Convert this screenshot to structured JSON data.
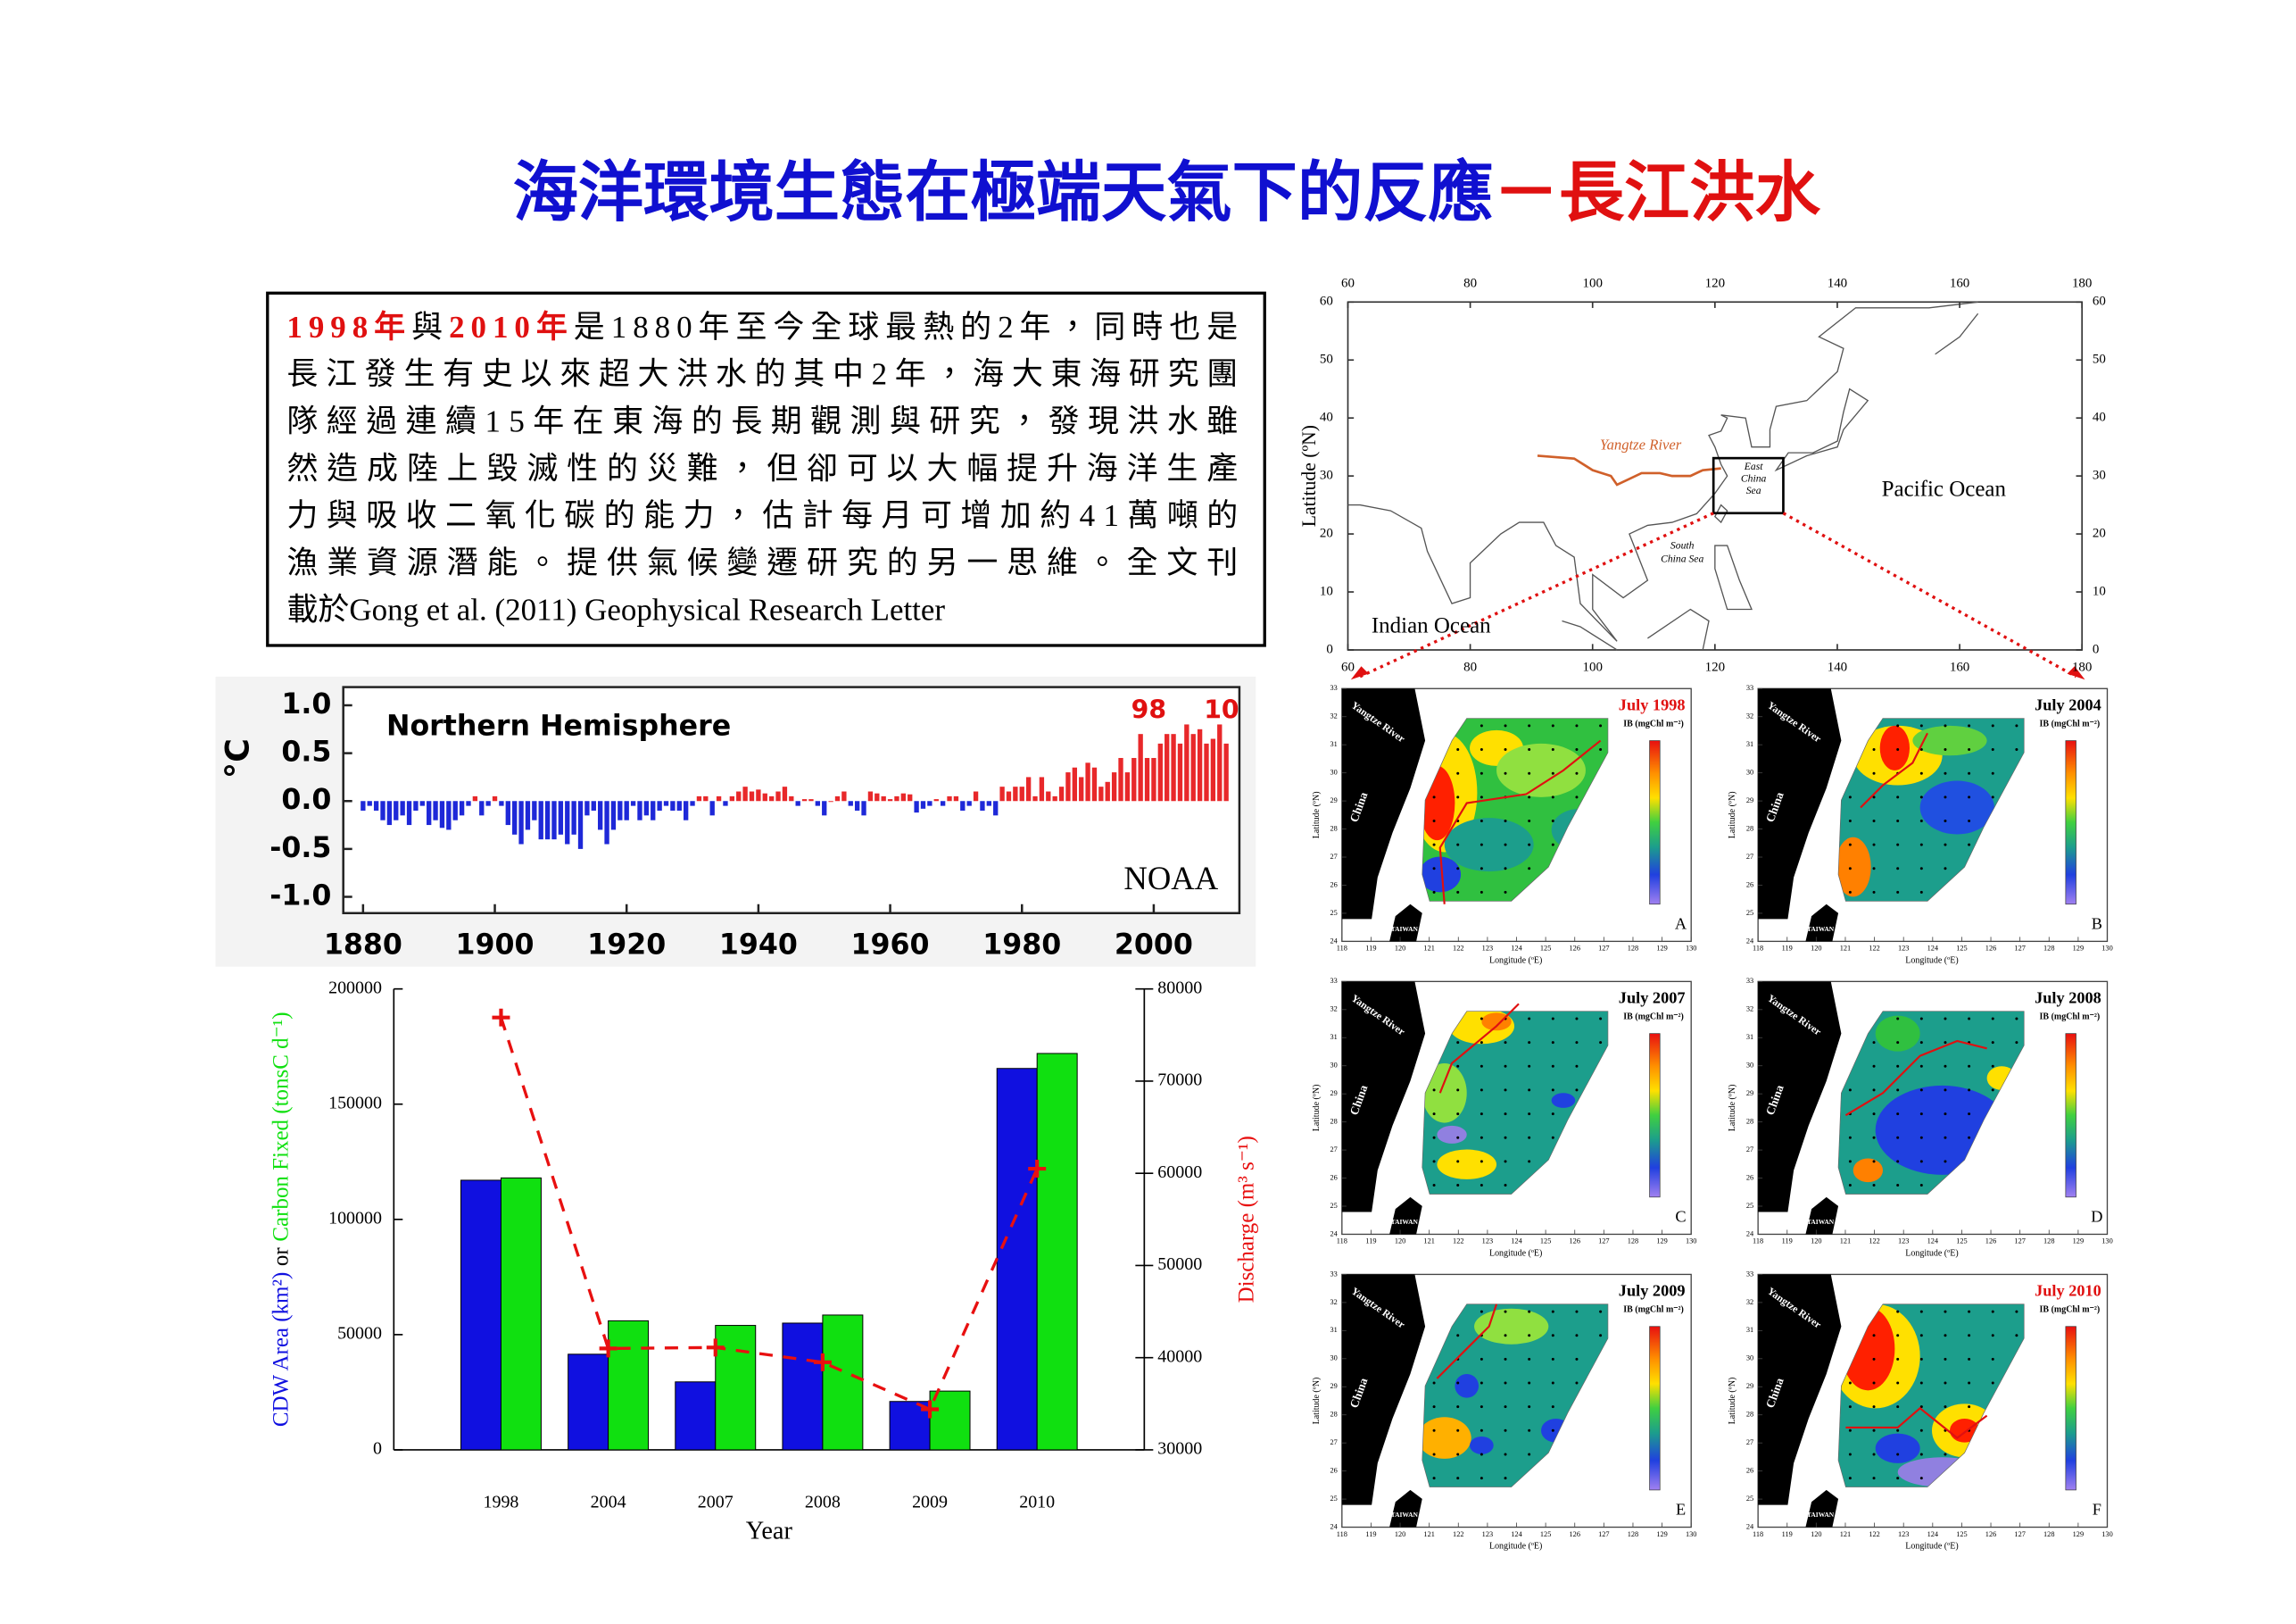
{
  "header": {
    "title": [
      "海洋環境生態在極端天氣下的反應",
      "－長江洪水"
    ]
  },
  "text": {
    "lines": [
      [
        "1998年",
        "與",
        "2010年",
        "是1880年至今全球最熱的2年，同時也是"
      ],
      [
        "長江發生有史以來超大洪水的其中2年，海大東海研究團"
      ],
      [
        "隊經過連續15年在東海的長期觀測與研究，發現洪水雖"
      ],
      [
        "然造成陸上毀滅性的災難，但卻可以大幅提升海洋生產"
      ],
      [
        "力與吸收二氧化碳的能力，估計每月可增加約41萬噸的"
      ],
      [
        "漁業資源潛能。提供氣候變遷研究的另一思維。全文刊"
      ],
      [
        "載於Gong et al. (2011) Geophysical Research Letter"
      ]
    ]
  },
  "chart_data": [
    {
      "type": "bar",
      "title": "Northern Hemisphere",
      "y_label": "°C",
      "annotations": [
        "98",
        "10",
        "NOAA"
      ],
      "x": [
        1880,
        1881,
        1882,
        1883,
        1884,
        1885,
        1886,
        1887,
        1888,
        1889,
        1890,
        1891,
        1892,
        1893,
        1894,
        1895,
        1896,
        1897,
        1898,
        1899,
        1900,
        1901,
        1902,
        1903,
        1904,
        1905,
        1906,
        1907,
        1908,
        1909,
        1910,
        1911,
        1912,
        1913,
        1914,
        1915,
        1916,
        1917,
        1918,
        1919,
        1920,
        1921,
        1922,
        1923,
        1924,
        1925,
        1926,
        1927,
        1928,
        1929,
        1930,
        1931,
        1932,
        1933,
        1934,
        1935,
        1936,
        1937,
        1938,
        1939,
        1940,
        1941,
        1942,
        1943,
        1944,
        1945,
        1946,
        1947,
        1948,
        1949,
        1950,
        1951,
        1952,
        1953,
        1954,
        1955,
        1956,
        1957,
        1958,
        1959,
        1960,
        1961,
        1962,
        1963,
        1964,
        1965,
        1966,
        1967,
        1968,
        1969,
        1970,
        1971,
        1972,
        1973,
        1974,
        1975,
        1976,
        1977,
        1978,
        1979,
        1980,
        1981,
        1982,
        1983,
        1984,
        1985,
        1986,
        1987,
        1988,
        1989,
        1990,
        1991,
        1992,
        1993,
        1994,
        1995,
        1996,
        1997,
        1998,
        1999,
        2000,
        2001,
        2002,
        2003,
        2004,
        2005,
        2006,
        2007,
        2008,
        2009,
        2010,
        2011
      ],
      "values": [
        -0.1,
        -0.05,
        -0.1,
        -0.2,
        -0.25,
        -0.2,
        -0.15,
        -0.25,
        -0.1,
        -0.05,
        -0.25,
        -0.2,
        -0.28,
        -0.3,
        -0.2,
        -0.15,
        -0.05,
        0.05,
        -0.15,
        -0.05,
        0.05,
        -0.05,
        -0.25,
        -0.35,
        -0.45,
        -0.3,
        -0.2,
        -0.4,
        -0.4,
        -0.4,
        -0.35,
        -0.45,
        -0.35,
        -0.5,
        -0.15,
        -0.1,
        -0.3,
        -0.45,
        -0.3,
        -0.2,
        -0.2,
        -0.05,
        -0.2,
        -0.15,
        -0.2,
        -0.1,
        -0.05,
        -0.1,
        -0.1,
        -0.2,
        -0.05,
        0.05,
        0.05,
        -0.15,
        0.05,
        -0.05,
        0.05,
        0.1,
        0.15,
        0.1,
        0.12,
        0.08,
        0.05,
        0.1,
        0.15,
        0.05,
        -0.05,
        0.02,
        0.02,
        -0.05,
        -0.15,
        0,
        0.05,
        0.1,
        -0.05,
        -0.1,
        -0.15,
        0.1,
        0.08,
        0.05,
        0.02,
        0.05,
        0.08,
        0.07,
        -0.12,
        -0.08,
        -0.05,
        0.02,
        -0.05,
        0.05,
        0.05,
        -0.1,
        -0.05,
        0.1,
        -0.1,
        -0.05,
        -0.15,
        0.15,
        0.1,
        0.15,
        0.15,
        0.25,
        0.05,
        0.25,
        0.1,
        0.05,
        0.15,
        0.3,
        0.35,
        0.25,
        0.4,
        0.35,
        0.15,
        0.2,
        0.3,
        0.45,
        0.3,
        0.45,
        0.7,
        0.45,
        0.45,
        0.6,
        0.7,
        0.7,
        0.6,
        0.8,
        0.7,
        0.75,
        0.6,
        0.65,
        0.8,
        0.6
      ],
      "colors": {
        "positive": "#e8282a",
        "negative": "#1e28d8"
      },
      "xlim": [
        1877,
        2013
      ],
      "xticks": [
        1880,
        1900,
        1920,
        1940,
        1960,
        1980,
        2000
      ],
      "ylim": [
        -1.17,
        1.19
      ],
      "yticks": [
        {
          "value": 1,
          "label": "1.0"
        },
        0.5,
        {
          "value": 0,
          "label": "0.0"
        },
        -0.5,
        {
          "value": -1,
          "label": "-1.0"
        }
      ]
    },
    {
      "type": "bar",
      "x_label": "Year",
      "y_label_joiner": "or",
      "categories": [
        "1998",
        "2004",
        "2007",
        "2008",
        "2009",
        "2010"
      ],
      "series": [
        {
          "name": "CDW Area (km²)",
          "color": "#1010e0",
          "values": [
            117000,
            41500,
            29500,
            55000,
            21000,
            165500
          ]
        },
        {
          "name": "Carbon Fixed (tonsC d⁻¹)",
          "color": "#10e010",
          "values": [
            118000,
            56000,
            54000,
            58500,
            25500,
            172000
          ]
        },
        {
          "name": "Discharge (m³ s⁻¹)",
          "color": "#e81010",
          "type": "line",
          "axis": "y2",
          "values": [
            76900,
            41000,
            41100,
            39500,
            34400,
            60500
          ]
        }
      ],
      "ylim": [
        0,
        200000
      ],
      "yticks": [
        0,
        50000,
        100000,
        150000,
        200000
      ],
      "y2lim": [
        30000,
        80000
      ],
      "y2ticks": [
        30000,
        40000,
        50000,
        60000,
        70000,
        80000
      ]
    }
  ],
  "world_map": {
    "lon_ticks": [
      60,
      80,
      100,
      120,
      140,
      160,
      180
    ],
    "lat_ticks": [
      0,
      10,
      20,
      30,
      40,
      50,
      60
    ],
    "y_label": "Latitude (ºN)",
    "river": "Yangtze River",
    "ecs": [
      "East",
      "China",
      "Sea"
    ],
    "scs": [
      "South",
      "China Sea"
    ],
    "pacific": "Pacific Ocean",
    "indian": "Indian Ocean"
  },
  "panel_axes": {
    "lon_ticks": [
      118,
      119,
      120,
      121,
      122,
      123,
      124,
      125,
      126,
      127,
      128,
      129,
      130
    ],
    "lat_ticks": [
      24,
      25,
      26,
      27,
      28,
      29,
      30,
      31,
      32,
      33
    ],
    "x_label": "Longitude (ºE)",
    "y_label": "Latitude (ºN)",
    "colorbar_label": "IB (mgChl m⁻²)",
    "river": "Yangtze River",
    "land": "China",
    "island": "TAIWAN"
  },
  "panels": [
    {
      "title": "July 1998",
      "letter": "A"
    },
    {
      "title": "July 2004",
      "letter": "B"
    },
    {
      "title": "July 2007",
      "letter": "C"
    },
    {
      "title": "July 2008",
      "letter": "D"
    },
    {
      "title": "July 2009",
      "letter": "E"
    },
    {
      "title": "July 2010",
      "letter": "F"
    }
  ]
}
